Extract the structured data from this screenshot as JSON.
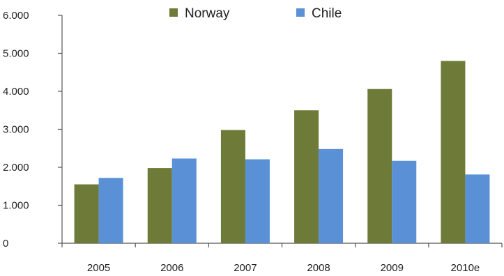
{
  "chart_data": {
    "type": "bar",
    "categories": [
      "2005",
      "2006",
      "2007",
      "2008",
      "2009",
      "2010e"
    ],
    "series": [
      {
        "name": "Norway",
        "color": "#6e7a37",
        "values": [
          1550,
          1980,
          2980,
          3500,
          4060,
          4800
        ]
      },
      {
        "name": "Chile",
        "color": "#5a90d6",
        "values": [
          1720,
          2230,
          2210,
          2480,
          2170,
          1810
        ]
      }
    ],
    "ylim": [
      0,
      6000
    ],
    "yticks": [
      0,
      1000,
      2000,
      3000,
      4000,
      5000,
      6000
    ],
    "ytick_labels": [
      "0",
      "1.000",
      "2.000",
      "3.000",
      "4.000",
      "5.000",
      "6.000"
    ],
    "legend_position": "top",
    "grid": false,
    "title": "",
    "xlabel": "",
    "ylabel": ""
  }
}
